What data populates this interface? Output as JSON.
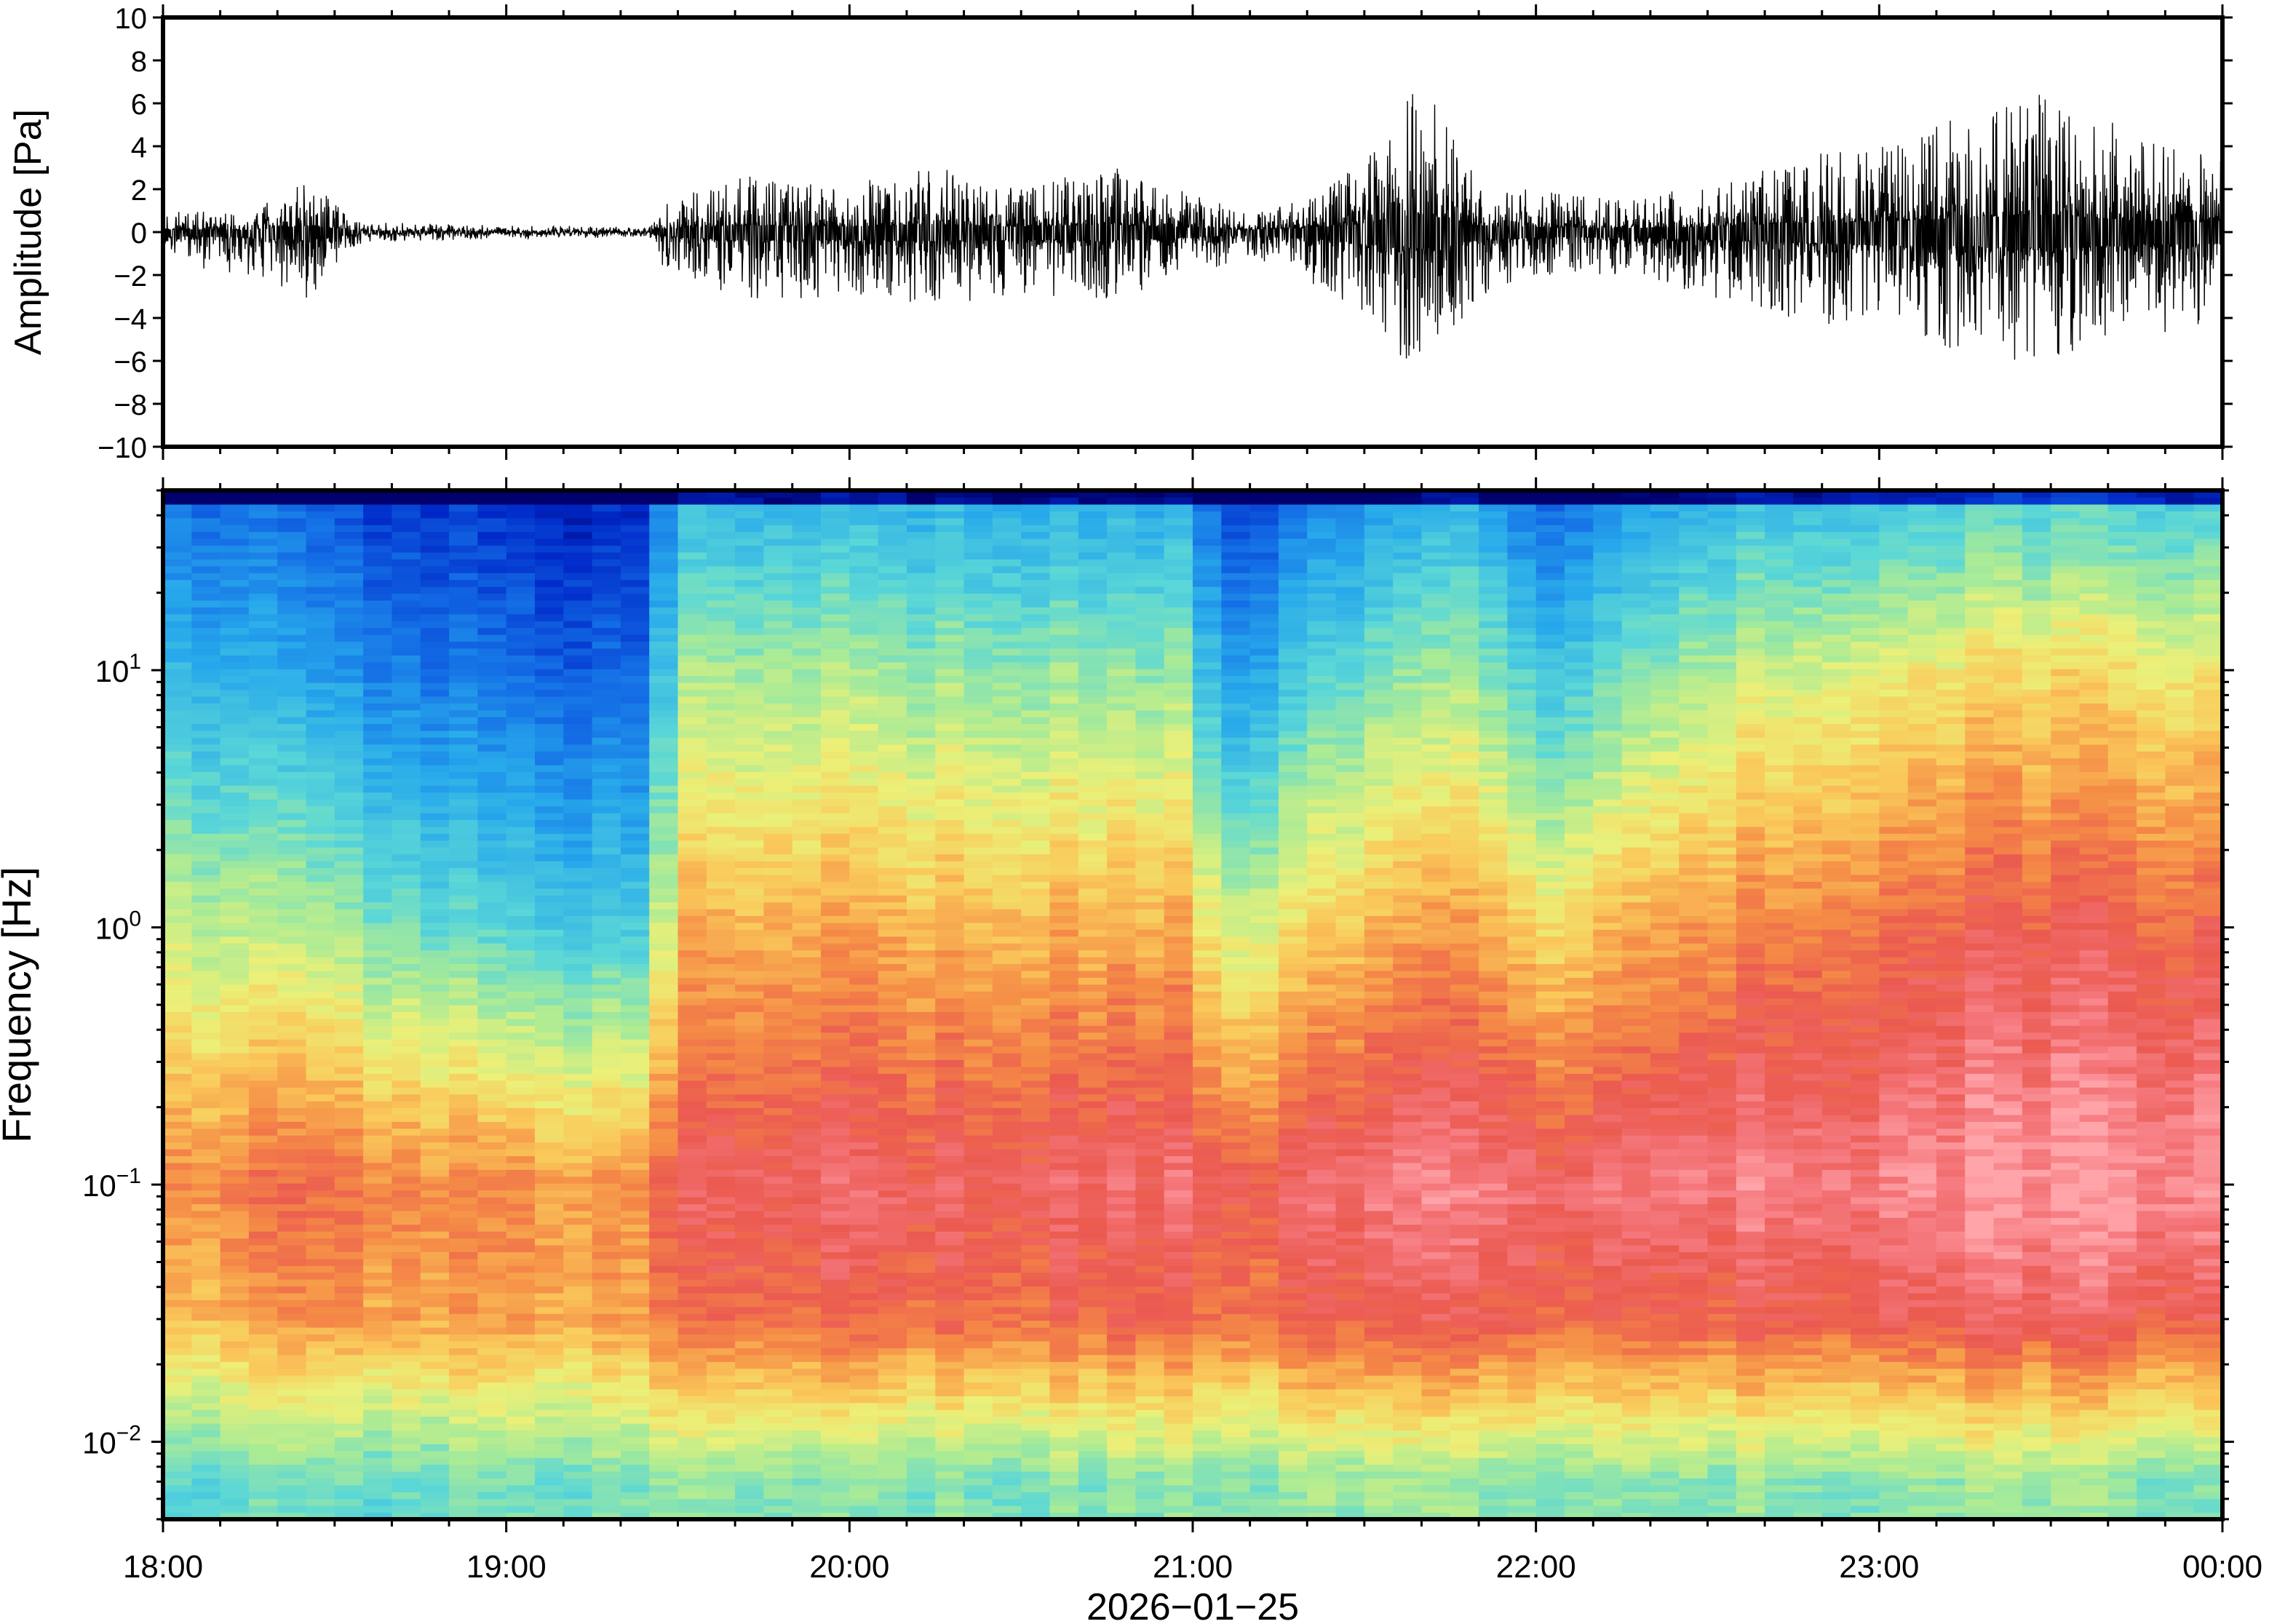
{
  "chart_data": [
    {
      "type": "line",
      "panel": "waveform",
      "ylabel": "Amplitude [Pa]",
      "ylim": [
        -10,
        10
      ],
      "yticks": [
        10,
        8,
        6,
        4,
        2,
        0,
        -2,
        -4,
        -6,
        -8,
        -10
      ],
      "xlim": [
        "18:00",
        "00:00"
      ],
      "grid": false,
      "envelope": {
        "x": [
          "18:00",
          "18:15",
          "18:25",
          "18:35",
          "18:45",
          "19:00",
          "19:15",
          "19:25",
          "19:27",
          "19:40",
          "20:00",
          "20:15",
          "20:30",
          "20:45",
          "21:00",
          "21:10",
          "21:20",
          "21:30",
          "21:40",
          "21:50",
          "22:00",
          "22:15",
          "22:30",
          "22:45",
          "23:00",
          "23:15",
          "23:30",
          "23:45",
          "00:00"
        ],
        "positive_envelope_pa": [
          1.0,
          0.9,
          2.4,
          0.5,
          0.4,
          0.3,
          0.3,
          0.2,
          1.2,
          2.7,
          2.2,
          3.2,
          2.0,
          3.2,
          1.8,
          1.0,
          1.5,
          3.4,
          7.2,
          2.5,
          2.0,
          1.5,
          2.2,
          3.5,
          4.0,
          5.5,
          6.8,
          4.5,
          3.5
        ],
        "negative_envelope_pa": [
          -1.5,
          -2.0,
          -3.2,
          -0.5,
          -0.4,
          -0.3,
          -0.3,
          -0.2,
          -1.5,
          -3.2,
          -3.0,
          -3.5,
          -3.0,
          -3.3,
          -2.0,
          -1.2,
          -2.5,
          -4.5,
          -6.5,
          -3.0,
          -2.0,
          -2.0,
          -3.0,
          -4.0,
          -5.0,
          -5.5,
          -6.3,
          -4.8,
          -4.5
        ]
      }
    },
    {
      "type": "heatmap",
      "panel": "spectrogram",
      "ylabel": "Frequency [Hz]",
      "yscale": "log",
      "ylim": [
        0.005,
        50
      ],
      "yticks": [
        0.01,
        0.1,
        1,
        10
      ],
      "yticklabels": [
        {
          "base": "10",
          "exp": "−2"
        },
        {
          "base": "10",
          "exp": "−1"
        },
        {
          "base": "10",
          "exp": "0"
        },
        {
          "base": "10",
          "exp": "1"
        }
      ],
      "colormap": "rainbow (blue = low power, red/pink = high power)",
      "x": [
        "18:00",
        "18:30",
        "19:00",
        "19:25",
        "19:30",
        "20:00",
        "20:30",
        "21:00",
        "21:05",
        "21:30",
        "21:50",
        "22:00",
        "22:30",
        "23:00",
        "23:30",
        "00:00"
      ],
      "relative_power_by_band": {
        "bands_hz": [
          0.007,
          0.03,
          0.1,
          1,
          10,
          40
        ],
        "columns": [
          [
            0.48,
            0.75,
            0.82,
            0.62,
            0.4,
            0.28
          ],
          [
            0.48,
            0.78,
            0.84,
            0.55,
            0.3,
            0.18
          ],
          [
            0.5,
            0.78,
            0.8,
            0.45,
            0.22,
            0.12
          ],
          [
            0.5,
            0.76,
            0.78,
            0.42,
            0.2,
            0.1
          ],
          [
            0.52,
            0.84,
            0.9,
            0.74,
            0.55,
            0.38
          ],
          [
            0.52,
            0.86,
            0.92,
            0.76,
            0.56,
            0.4
          ],
          [
            0.52,
            0.86,
            0.92,
            0.76,
            0.55,
            0.38
          ],
          [
            0.52,
            0.86,
            0.92,
            0.75,
            0.52,
            0.36
          ],
          [
            0.52,
            0.84,
            0.88,
            0.6,
            0.3,
            0.16
          ],
          [
            0.53,
            0.86,
            0.93,
            0.72,
            0.48,
            0.3
          ],
          [
            0.53,
            0.88,
            0.96,
            0.78,
            0.55,
            0.38
          ],
          [
            0.52,
            0.86,
            0.92,
            0.68,
            0.4,
            0.22
          ],
          [
            0.53,
            0.88,
            0.96,
            0.8,
            0.58,
            0.4
          ],
          [
            0.54,
            0.9,
            0.98,
            0.86,
            0.66,
            0.44
          ],
          [
            0.54,
            0.9,
            0.99,
            0.88,
            0.68,
            0.46
          ],
          [
            0.5,
            0.88,
            0.98,
            0.86,
            0.66,
            0.44
          ]
        ]
      }
    }
  ],
  "xaxis": {
    "ticklabels": [
      "18:00",
      "19:00",
      "20:00",
      "21:00",
      "22:00",
      "23:00",
      "00:00"
    ],
    "date_label": "2026−01−25"
  }
}
